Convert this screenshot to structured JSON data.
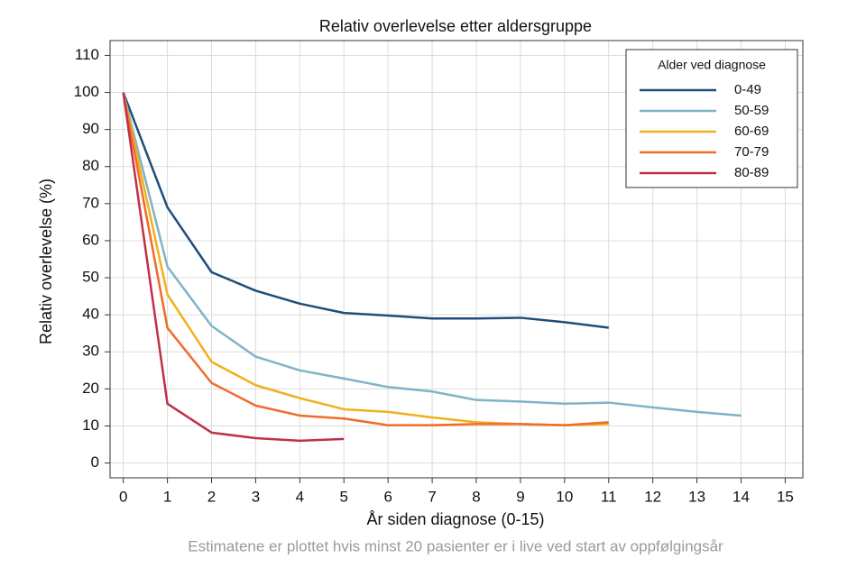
{
  "chart_data": {
    "type": "line",
    "title": "Relativ overlevelse etter aldersgruppe",
    "x_label": "År siden diagnose (0-15)",
    "y_label": "Relativ overlevelse (%)",
    "note": "Estimatene er plottet hvis minst 20 pasienter er i live ved start av oppfølgingsår",
    "legend_title": "Alder ved diagnose",
    "legend_position": "top-right",
    "grid": true,
    "x": [
      0,
      1,
      2,
      3,
      4,
      5,
      6,
      7,
      8,
      9,
      10,
      11,
      12,
      13,
      14
    ],
    "series": [
      {
        "name": "0-49",
        "color": "#1f4e79",
        "values": [
          100,
          69,
          51.5,
          46.5,
          43,
          40.5,
          39.8,
          39,
          39,
          39.2,
          38,
          36.5,
          null,
          null,
          null
        ]
      },
      {
        "name": "50-59",
        "color": "#7fb3c9",
        "values": [
          100,
          53,
          37,
          28.7,
          25,
          22.8,
          20.5,
          19.3,
          17,
          16.6,
          16,
          16.3,
          15,
          13.8,
          12.8
        ]
      },
      {
        "name": "60-69",
        "color": "#f2b01e",
        "values": [
          100,
          45.5,
          27.3,
          21,
          17.5,
          14.5,
          13.8,
          12.3,
          11,
          10.5,
          10.2,
          10.5,
          null,
          null,
          null
        ]
      },
      {
        "name": "70-79",
        "color": "#f26b2a",
        "values": [
          100,
          36.5,
          21.6,
          15.5,
          12.8,
          12,
          10.2,
          10.2,
          10.5,
          10.5,
          10.2,
          11,
          null,
          null,
          null
        ]
      },
      {
        "name": "80-89",
        "color": "#c0304a",
        "values": [
          100,
          16,
          8.2,
          6.7,
          6,
          6.5,
          null,
          null,
          null,
          null,
          null,
          null,
          null,
          null,
          null
        ]
      }
    ],
    "xlim": [
      -0.3,
      15.4
    ],
    "ylim": [
      -4,
      114
    ],
    "xticks": [
      0,
      1,
      2,
      3,
      4,
      5,
      6,
      7,
      8,
      9,
      10,
      11,
      12,
      13,
      14,
      15
    ],
    "yticks": [
      0,
      10,
      20,
      30,
      40,
      50,
      60,
      70,
      80,
      90,
      100,
      110
    ]
  }
}
